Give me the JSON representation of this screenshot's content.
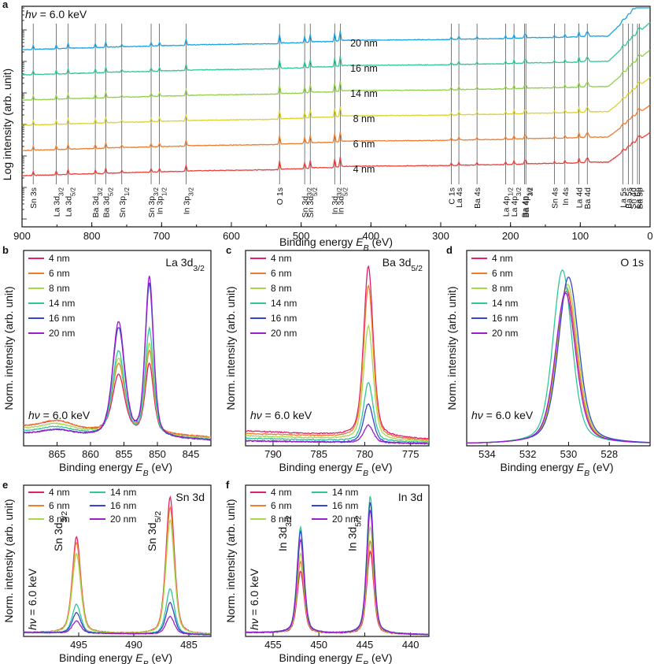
{
  "chart_data": [
    {
      "id": "a",
      "type": "line",
      "panel_label": "a",
      "title": "",
      "annotation": "hν = 6.0 keV",
      "xlabel": "Binding energy E_B (eV)",
      "ylabel": "Log intensity (arb. unit)",
      "xlim": [
        900,
        0
      ],
      "x_ticks": [
        900,
        800,
        700,
        600,
        500,
        400,
        300,
        200,
        100,
        0
      ],
      "y_scale": "log",
      "series": [
        {
          "name": "4 nm",
          "color": "#e8413c",
          "offset": 0
        },
        {
          "name": "6 nm",
          "color": "#ef7d2f",
          "offset": 1
        },
        {
          "name": "8 nm",
          "color": "#dcd230",
          "offset": 2
        },
        {
          "name": "14 nm",
          "color": "#8fd14a",
          "offset": 3
        },
        {
          "name": "16 nm",
          "color": "#2fc79a",
          "offset": 4
        },
        {
          "name": "20 nm",
          "color": "#1aa3e3",
          "offset": 5
        }
      ],
      "peaks": [
        {
          "x": 884,
          "label": "Sn 3s",
          "h": 1.0
        },
        {
          "x": 851,
          "label": "La 3d3/2",
          "h": 1.0
        },
        {
          "x": 834,
          "label": "La 3d5/2",
          "h": 1.3
        },
        {
          "x": 795,
          "label": "Ba 3d3/2",
          "h": 1.0
        },
        {
          "x": 780,
          "label": "Ba 3d5/2",
          "h": 1.4
        },
        {
          "x": 757,
          "label": "Sn 3p1/2",
          "h": 0.6
        },
        {
          "x": 715,
          "label": "Sn 3p3/2",
          "h": 0.9
        },
        {
          "x": 703,
          "label": "In 3p1/2",
          "h": 0.9
        },
        {
          "x": 665,
          "label": "In 3p3/2",
          "h": 1.6
        },
        {
          "x": 531,
          "label": "O 1s",
          "h": 2.3
        },
        {
          "x": 495,
          "label": "Sn 3d3/2",
          "h": 1.6
        },
        {
          "x": 487,
          "label": "Sn 3d5/2",
          "h": 2.0
        },
        {
          "x": 452,
          "label": "In 3d3/2",
          "h": 2.2
        },
        {
          "x": 444,
          "label": "In 3d5/2",
          "h": 2.6
        },
        {
          "x": 285,
          "label": "C 1s",
          "h": 0.6
        },
        {
          "x": 274,
          "label": "La 4s",
          "h": 0.8
        },
        {
          "x": 248,
          "label": "Ba 4s",
          "h": 0.6
        },
        {
          "x": 207,
          "label": "La 4p1/2",
          "h": 0.7
        },
        {
          "x": 195,
          "label": "La 4p3/2",
          "h": 0.9
        },
        {
          "x": 180,
          "label": "Ba 4p1/2",
          "h": 0.8
        },
        {
          "x": 178,
          "label": "Ba 4p3/2",
          "h": 0.9
        },
        {
          "x": 137,
          "label": "Sn 4s",
          "h": 0.5
        },
        {
          "x": 122,
          "label": "In 4s",
          "h": 0.7
        },
        {
          "x": 102,
          "label": "La 4d",
          "h": 1.3
        },
        {
          "x": 90,
          "label": "Ba 4d",
          "h": 1.2
        },
        {
          "x": 39,
          "label": "La 5s",
          "h": 0.6
        },
        {
          "x": 31,
          "label": "Ba 5s",
          "h": 0.6
        },
        {
          "x": 25,
          "label": "Sn 4d",
          "h": 0.8
        },
        {
          "x": 18,
          "label": "La 5p",
          "h": 0.8
        },
        {
          "x": 15,
          "label": "Ba 5p",
          "h": 0.9
        }
      ]
    },
    {
      "id": "b",
      "type": "line",
      "panel_label": "b",
      "region_label": "La 3d3/2",
      "annotation": "hν = 6.0 keV",
      "xlabel": "Binding energy E_B (eV)",
      "ylabel": "Norm. intensity (arb. unit)",
      "xlim": [
        870,
        842
      ],
      "x_ticks": [
        865,
        860,
        855,
        850,
        845
      ],
      "ylim": [
        0,
        1.1
      ],
      "peaks": [
        {
          "x": 855.8,
          "w": 1.3
        },
        {
          "x": 851.2,
          "w": 0.9
        }
      ],
      "series": [
        {
          "name": "4 nm",
          "color": "#e0206c",
          "amps": [
            0.32,
            0.39
          ],
          "bg": 0.08
        },
        {
          "name": "6 nm",
          "color": "#ef7d2f",
          "amps": [
            0.38,
            0.46
          ],
          "bg": 0.08
        },
        {
          "name": "8 nm",
          "color": "#a7d84a",
          "amps": [
            0.42,
            0.51
          ],
          "bg": 0.07
        },
        {
          "name": "14 nm",
          "color": "#2fc79a",
          "amps": [
            0.47,
            0.6
          ],
          "bg": 0.06
        },
        {
          "name": "16 nm",
          "color": "#3546d2",
          "amps": [
            0.61,
            0.86
          ],
          "bg": 0.05
        },
        {
          "name": "20 nm",
          "color": "#9b1ec8",
          "amps": [
            0.64,
            0.9
          ],
          "bg": 0.05
        }
      ]
    },
    {
      "id": "c",
      "type": "line",
      "panel_label": "c",
      "region_label": "Ba 3d5/2",
      "annotation": "hν = 6.0 keV",
      "xlabel": "Binding energy E_B (eV)",
      "ylabel": "Norm. intensity (arb. unit)",
      "xlim": [
        793,
        773
      ],
      "x_ticks": [
        790,
        785,
        780,
        775
      ],
      "ylim": [
        0,
        1.1
      ],
      "peaks": [
        {
          "x": 779.6,
          "w": 0.75
        }
      ],
      "series": [
        {
          "name": "4 nm",
          "color": "#e0206c",
          "amps": [
            0.96
          ],
          "bg": 0.06
        },
        {
          "name": "6 nm",
          "color": "#ef7d2f",
          "amps": [
            0.86
          ],
          "bg": 0.05
        },
        {
          "name": "8 nm",
          "color": "#a7d84a",
          "amps": [
            0.64
          ],
          "bg": 0.04
        },
        {
          "name": "14 nm",
          "color": "#2fc79a",
          "amps": [
            0.33
          ],
          "bg": 0.03
        },
        {
          "name": "16 nm",
          "color": "#3546d2",
          "amps": [
            0.22
          ],
          "bg": 0.02
        },
        {
          "name": "20 nm",
          "color": "#9b1ec8",
          "amps": [
            0.1
          ],
          "bg": 0.02
        }
      ]
    },
    {
      "id": "d",
      "type": "line",
      "panel_label": "d",
      "region_label": "O 1s",
      "annotation": "hν = 6.0 keV",
      "xlabel": "Binding energy E_B (eV)",
      "ylabel": "Norm. intensity (arb. unit)",
      "xlim": [
        535,
        526
      ],
      "x_ticks": [
        534,
        532,
        530,
        528
      ],
      "ylim": [
        0,
        1.1
      ],
      "series": [
        {
          "name": "4 nm",
          "color": "#e0206c",
          "center": 530.1,
          "w": 0.7,
          "amp": 0.86
        },
        {
          "name": "6 nm",
          "color": "#ef7d2f",
          "center": 530.1,
          "w": 0.7,
          "amp": 0.88
        },
        {
          "name": "8 nm",
          "color": "#a7d84a",
          "center": 530.05,
          "w": 0.7,
          "amp": 0.9
        },
        {
          "name": "14 nm",
          "color": "#2fc79a",
          "center": 530.3,
          "w": 0.65,
          "amp": 0.98
        },
        {
          "name": "16 nm",
          "color": "#3546d2",
          "center": 530.0,
          "w": 0.7,
          "amp": 0.94
        },
        {
          "name": "20 nm",
          "color": "#9b1ec8",
          "center": 530.15,
          "w": 0.7,
          "amp": 0.85
        }
      ]
    },
    {
      "id": "e",
      "type": "line",
      "panel_label": "e",
      "region_label": "Sn 3d",
      "annotation": "hν = 6.0 keV",
      "peak_labels": [
        {
          "x": 495.2,
          "text": "Sn 3d3/2"
        },
        {
          "x": 486.7,
          "text": "Sn 3d5/2"
        }
      ],
      "xlabel": "Binding energy E_B (eV)",
      "ylabel": "Norm. intensity (arb. unit)",
      "xlim": [
        500,
        483
      ],
      "x_ticks": [
        495,
        490,
        485
      ],
      "ylim": [
        0,
        1.1
      ],
      "peaks": [
        {
          "x": 495.2,
          "w": 0.55
        },
        {
          "x": 486.7,
          "w": 0.55
        }
      ],
      "series": [
        {
          "name": "4 nm",
          "color": "#e0206c",
          "amps": [
            0.7,
            1.0
          ],
          "bg": 0.02
        },
        {
          "name": "6 nm",
          "color": "#ef7d2f",
          "amps": [
            0.66,
            0.92
          ],
          "bg": 0.02
        },
        {
          "name": "8 nm",
          "color": "#a7d84a",
          "amps": [
            0.58,
            0.83
          ],
          "bg": 0.02
        },
        {
          "name": "14 nm",
          "color": "#2fc79a",
          "amps": [
            0.21,
            0.33
          ],
          "bg": 0.02
        },
        {
          "name": "16 nm",
          "color": "#3546d2",
          "amps": [
            0.15,
            0.23
          ],
          "bg": 0.02
        },
        {
          "name": "20 nm",
          "color": "#9b1ec8",
          "amps": [
            0.09,
            0.13
          ],
          "bg": 0.02
        }
      ]
    },
    {
      "id": "f",
      "type": "line",
      "panel_label": "f",
      "region_label": "In 3d",
      "annotation": "hν = 6.0 keV",
      "peak_labels": [
        {
          "x": 452.0,
          "text": "In 3d3/2"
        },
        {
          "x": 444.4,
          "text": "In 3d5/2"
        }
      ],
      "xlabel": "Binding energy E_B (eV)",
      "ylabel": "Norm. intensity (arb. unit)",
      "xlim": [
        458,
        438
      ],
      "x_ticks": [
        455,
        450,
        445,
        440
      ],
      "ylim": [
        0,
        1.1
      ],
      "peaks": [
        {
          "x": 452.0,
          "w": 0.55
        },
        {
          "x": 444.4,
          "w": 0.55
        }
      ],
      "series": [
        {
          "name": "4 nm",
          "color": "#e0206c",
          "amps": [
            0.45,
            0.6
          ],
          "bg": 0.02
        },
        {
          "name": "6 nm",
          "color": "#ef7d2f",
          "amps": [
            0.52,
            0.68
          ],
          "bg": 0.02
        },
        {
          "name": "8 nm",
          "color": "#a7d84a",
          "amps": [
            0.58,
            0.78
          ],
          "bg": 0.02
        },
        {
          "name": "14 nm",
          "color": "#2fc79a",
          "amps": [
            0.77,
            1.0
          ],
          "bg": 0.02
        },
        {
          "name": "16 nm",
          "color": "#3546d2",
          "amps": [
            0.74,
            0.96
          ],
          "bg": 0.02
        },
        {
          "name": "20 nm",
          "color": "#9b1ec8",
          "amps": [
            0.68,
            0.9
          ],
          "bg": 0.02
        }
      ]
    }
  ]
}
